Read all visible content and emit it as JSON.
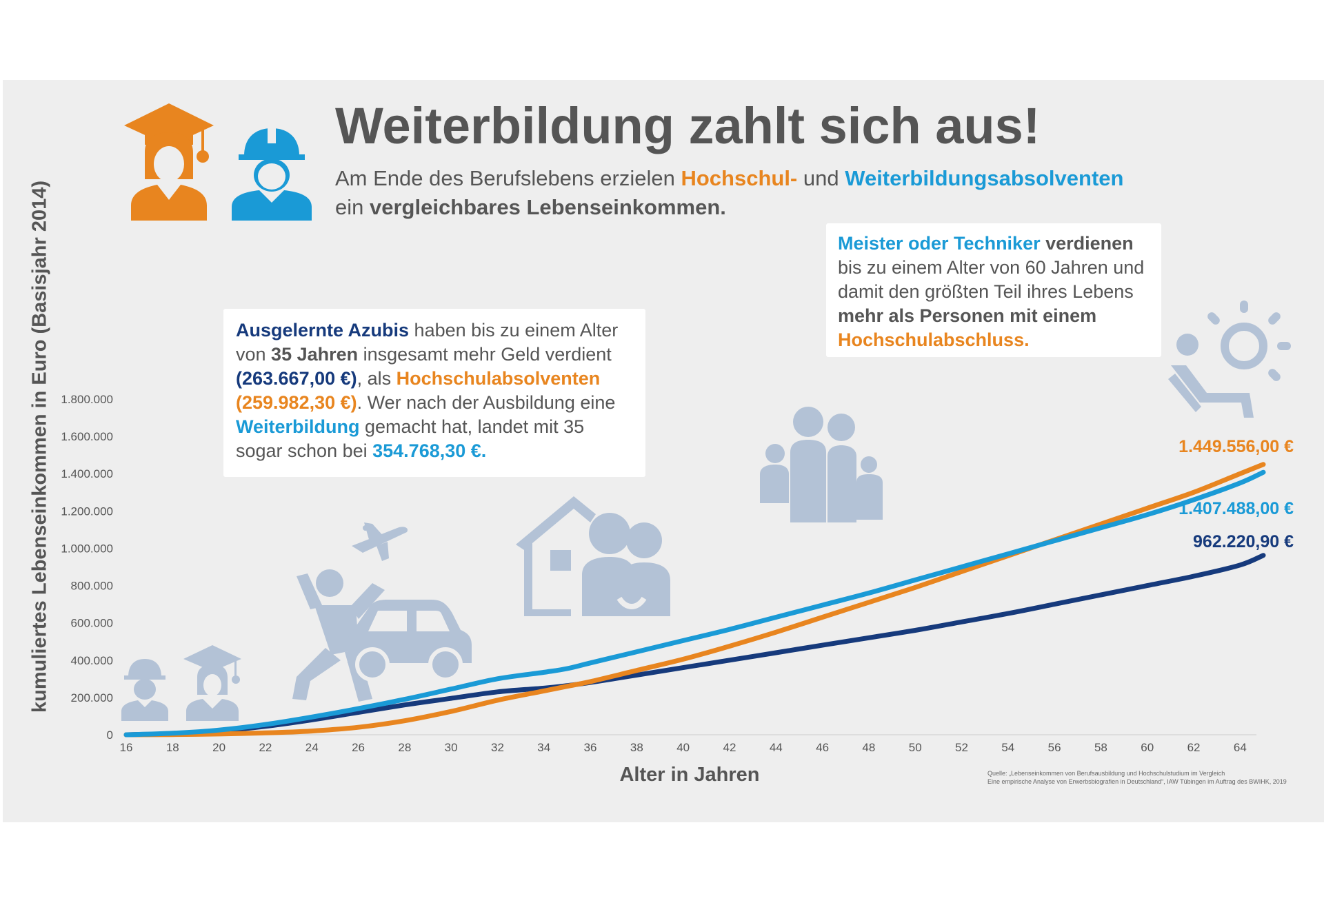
{
  "header": {
    "title": "Weiterbildung zahlt sich aus!",
    "subtitle_part1": "Am Ende des Berufslebens erzielen",
    "subtitle_hochschul": "Hochschul-",
    "subtitle_und": "und",
    "subtitle_weiterbildung": "Weiterbildungsabsolventen",
    "subtitle_line2_ein": "ein",
    "subtitle_line2_bold": "vergleichbares Lebenseinkommen."
  },
  "box_azubis": {
    "t1": "Ausgelernte Azubis",
    "t2": " haben bis zu einem Alter von ",
    "t3": "35 Jahren",
    "t4": " insgesamt mehr Geld verdient ",
    "t5": "(263.667,00 €)",
    "t6": ", als ",
    "t7": "Hochschulabsolventen (259.982,30 €)",
    "t8": ". Wer nach der Ausbildung eine ",
    "t9": "Weiterbildung",
    "t10": " gemacht hat, landet mit 35  sogar schon bei ",
    "t11": "354.768,30 €."
  },
  "box_meister": {
    "t1": "Meister oder Techniker",
    "t2": " verdienen",
    "t3": " bis zu einem Alter von 60 Jahren und damit den größten Teil ihres Lebens ",
    "t4": "mehr als Personen mit einem ",
    "t5": "Hochschulabschluss."
  },
  "end_labels": {
    "hochschule": "1.449.556,00 €",
    "weiterbildung": "1.407.488,00 €",
    "ausbildung": "962.220,90 €"
  },
  "source": {
    "line1": "Quelle: „Lebenseinkommen von Berufsausbildung und Hochschulstudium im Vergleich",
    "line2": "Eine empirische Analyse von Erwerbsbiografien in Deutschland“, IAW Tübingen im Auftrag des BWIHK, 2019"
  },
  "icons": [
    "graduate-icon",
    "worker-icon",
    "airplane-icon",
    "cheering-person-icon",
    "car-icon",
    "house-couple-icon",
    "family-icon",
    "retiree-sun-icon"
  ],
  "colors": {
    "hochschule": "#e8851f",
    "weiterbildung": "#1a9ad6",
    "ausbildung": "#163a7c",
    "icon_grey": "#b3c2d6",
    "background": "#eeeeee"
  },
  "chart_data": {
    "type": "line",
    "xlabel": "Alter in Jahren",
    "ylabel": "kumuliertes Lebenseinkommen in Euro (Basisjahr 2014)",
    "xlim": [
      16,
      65
    ],
    "ylim": [
      0,
      1800000
    ],
    "x_ticks": [
      "16",
      "18",
      "20",
      "22",
      "24",
      "26",
      "28",
      "30",
      "32",
      "34",
      "36",
      "38",
      "40",
      "42",
      "44",
      "46",
      "48",
      "50",
      "52",
      "54",
      "56",
      "58",
      "60",
      "62",
      "64"
    ],
    "y_ticks": [
      "0",
      "200.000",
      "400.000",
      "600.000",
      "800.000",
      "1.000.000",
      "1.200.000",
      "1.400.000",
      "1.600.000",
      "1.800.000"
    ],
    "grid": false,
    "series": [
      {
        "key": "hochschule",
        "x": [
          16,
          18,
          20,
          22,
          24,
          26,
          28,
          30,
          32,
          34,
          35,
          36,
          38,
          40,
          42,
          44,
          46,
          48,
          50,
          52,
          54,
          56,
          58,
          60,
          62,
          64,
          65
        ],
        "values": [
          0,
          1000,
          4000,
          10000,
          20000,
          40000,
          75000,
          125000,
          185000,
          235000,
          260000,
          285000,
          345000,
          405000,
          475000,
          550000,
          630000,
          710000,
          790000,
          875000,
          960000,
          1045000,
          1130000,
          1215000,
          1300000,
          1400000,
          1449556
        ]
      },
      {
        "key": "weiterbildung",
        "x": [
          16,
          18,
          20,
          22,
          24,
          26,
          28,
          30,
          32,
          34,
          35,
          36,
          38,
          40,
          42,
          44,
          46,
          48,
          50,
          52,
          54,
          56,
          58,
          60,
          62,
          64,
          65
        ],
        "values": [
          0,
          8000,
          25000,
          55000,
          95000,
          140000,
          190000,
          245000,
          300000,
          335000,
          354768,
          385000,
          445000,
          505000,
          565000,
          630000,
          695000,
          760000,
          830000,
          900000,
          970000,
          1040000,
          1110000,
          1180000,
          1260000,
          1350000,
          1407488
        ]
      },
      {
        "key": "ausbildung",
        "x": [
          16,
          18,
          20,
          22,
          24,
          26,
          28,
          30,
          32,
          34,
          35,
          36,
          38,
          40,
          42,
          44,
          46,
          48,
          50,
          52,
          54,
          56,
          58,
          60,
          62,
          64,
          65
        ],
        "values": [
          0,
          6000,
          20000,
          45000,
          80000,
          120000,
          160000,
          195000,
          230000,
          250000,
          263667,
          280000,
          320000,
          360000,
          400000,
          440000,
          480000,
          520000,
          560000,
          605000,
          650000,
          700000,
          750000,
          800000,
          850000,
          910000,
          962221
        ]
      }
    ]
  }
}
